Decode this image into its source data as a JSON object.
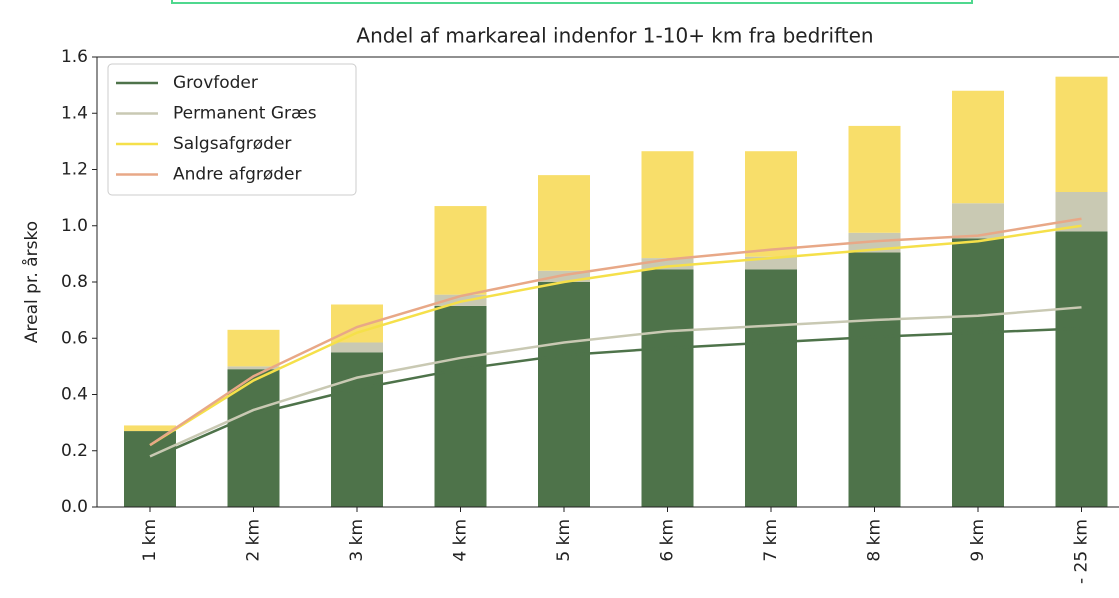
{
  "chart_data": {
    "type": "bar-line",
    "title": "Andel af markareal indenfor 1-10+ km fra bedriften",
    "ylabel": "Areal pr. årsko",
    "categories": [
      "1 km",
      "2 km",
      "3 km",
      "4 km",
      "5 km",
      "6 km",
      "7 km",
      "8 km",
      "9 km",
      "- 25 km"
    ],
    "bar_series": [
      {
        "color": "#4e734a",
        "values": [
          0.27,
          0.49,
          0.55,
          0.715,
          0.8,
          0.845,
          0.845,
          0.905,
          0.955,
          0.98
        ]
      },
      {
        "color": "#c9c9b3",
        "values": [
          0.0,
          0.01,
          0.035,
          0.04,
          0.04,
          0.04,
          0.045,
          0.07,
          0.125,
          0.14
        ]
      },
      {
        "color": "#f8de6a",
        "values": [
          0.02,
          0.13,
          0.135,
          0.315,
          0.34,
          0.38,
          0.375,
          0.38,
          0.4,
          0.41
        ]
      }
    ],
    "series": [
      {
        "name": "Grovfoder",
        "color": "#4e734a",
        "values": [
          0.17,
          0.33,
          0.42,
          0.49,
          0.54,
          0.565,
          0.585,
          0.605,
          0.62,
          0.635
        ]
      },
      {
        "name": "Permanent Græs",
        "color": "#c9c9b3",
        "values": [
          0.18,
          0.345,
          0.46,
          0.53,
          0.585,
          0.625,
          0.645,
          0.665,
          0.68,
          0.71
        ]
      },
      {
        "name": "Salgsafgrøder",
        "color": "#f5e04a",
        "values": [
          0.22,
          0.45,
          0.62,
          0.73,
          0.8,
          0.855,
          0.885,
          0.915,
          0.945,
          1.0
        ]
      },
      {
        "name": "Andre afgrøder",
        "color": "#e8a887",
        "values": [
          0.22,
          0.465,
          0.64,
          0.75,
          0.825,
          0.88,
          0.915,
          0.945,
          0.965,
          1.025
        ]
      }
    ],
    "ylim": [
      0,
      1.6
    ],
    "yticks": [
      {
        "value": 0,
        "label": "0.0"
      },
      0.2,
      0.4,
      0.6,
      0.8,
      {
        "value": 1,
        "label": "1.0"
      },
      1.2,
      1.4,
      1.6
    ],
    "legend": "upper left"
  }
}
